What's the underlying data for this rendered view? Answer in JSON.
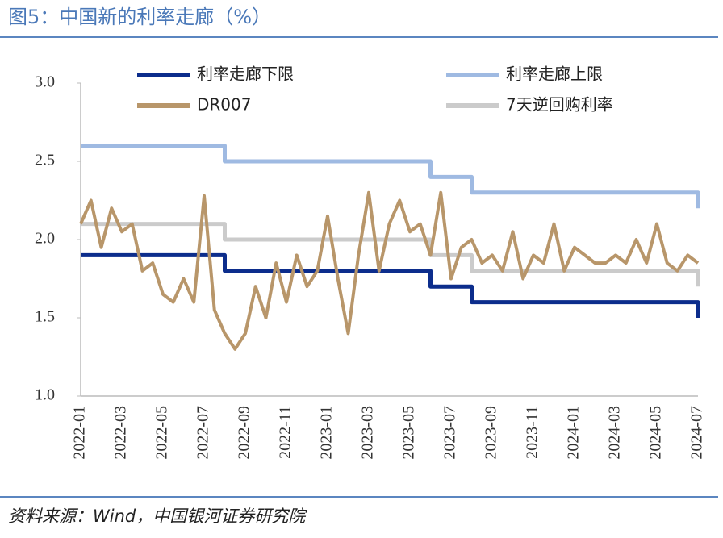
{
  "chart_data": {
    "type": "line",
    "step": true,
    "title": "图5：中国新的利率走廊（%）",
    "source": "资料来源：Wind，中国银河证券研究院",
    "legend": "top",
    "categories": [
      "2022-01",
      null,
      null,
      null,
      "2022-03",
      null,
      null,
      null,
      "2022-05",
      null,
      null,
      null,
      "2022-07",
      null,
      null,
      null,
      "2022-09",
      null,
      null,
      null,
      "2022-11",
      null,
      null,
      null,
      "2023-01",
      null,
      null,
      null,
      "2023-03",
      null,
      null,
      null,
      "2023-05",
      null,
      null,
      null,
      "2023-07",
      null,
      null,
      null,
      "2023-09",
      null,
      null,
      null,
      "2023-11",
      null,
      null,
      null,
      "2024-01",
      null,
      null,
      null,
      "2024-03",
      null,
      null,
      null,
      "2024-05",
      null,
      null,
      null,
      "2024-07"
    ],
    "ylim": [
      1.0,
      3.0
    ],
    "yticks": [
      {
        "value": 1.0,
        "label": "1.0"
      },
      {
        "value": 1.5,
        "label": "1.5"
      },
      {
        "value": 2.0,
        "label": "2.0"
      },
      {
        "value": 2.5,
        "label": "2.5"
      },
      {
        "value": 3.0,
        "label": "3.0"
      }
    ],
    "series": [
      {
        "name": "利率走廊下限",
        "color": "#0c2d8c",
        "step": true,
        "values": [
          1.9,
          1.9,
          1.9,
          1.9,
          1.9,
          1.9,
          1.9,
          1.9,
          1.9,
          1.9,
          1.9,
          1.9,
          1.9,
          1.9,
          1.8,
          1.8,
          1.8,
          1.8,
          1.8,
          1.8,
          1.8,
          1.8,
          1.8,
          1.8,
          1.8,
          1.8,
          1.8,
          1.8,
          1.8,
          1.8,
          1.8,
          1.8,
          1.8,
          1.8,
          1.7,
          1.7,
          1.7,
          1.7,
          1.6,
          1.6,
          1.6,
          1.6,
          1.6,
          1.6,
          1.6,
          1.6,
          1.6,
          1.6,
          1.6,
          1.6,
          1.6,
          1.6,
          1.6,
          1.6,
          1.6,
          1.6,
          1.6,
          1.6,
          1.6,
          1.6,
          1.5
        ]
      },
      {
        "name": "利率走廊上限",
        "color": "#9fbae2",
        "step": true,
        "values": [
          2.6,
          2.6,
          2.6,
          2.6,
          2.6,
          2.6,
          2.6,
          2.6,
          2.6,
          2.6,
          2.6,
          2.6,
          2.6,
          2.6,
          2.5,
          2.5,
          2.5,
          2.5,
          2.5,
          2.5,
          2.5,
          2.5,
          2.5,
          2.5,
          2.5,
          2.5,
          2.5,
          2.5,
          2.5,
          2.5,
          2.5,
          2.5,
          2.5,
          2.5,
          2.4,
          2.4,
          2.4,
          2.4,
          2.3,
          2.3,
          2.3,
          2.3,
          2.3,
          2.3,
          2.3,
          2.3,
          2.3,
          2.3,
          2.3,
          2.3,
          2.3,
          2.3,
          2.3,
          2.3,
          2.3,
          2.3,
          2.3,
          2.3,
          2.3,
          2.3,
          2.2
        ]
      },
      {
        "name": "DR007",
        "color": "#b8966a",
        "step": false,
        "values": [
          2.1,
          2.25,
          1.95,
          2.2,
          2.05,
          2.1,
          1.8,
          1.85,
          1.65,
          1.6,
          1.75,
          1.6,
          2.28,
          1.55,
          1.4,
          1.3,
          1.4,
          1.7,
          1.5,
          1.85,
          1.6,
          1.9,
          1.7,
          1.8,
          2.15,
          1.75,
          1.4,
          1.9,
          2.3,
          1.8,
          2.1,
          2.25,
          2.05,
          2.1,
          1.9,
          2.3,
          1.75,
          1.95,
          2.0,
          1.85,
          1.9,
          1.8,
          2.05,
          1.75,
          1.9,
          1.85,
          2.1,
          1.8,
          1.95,
          1.9,
          1.85,
          1.85,
          1.9,
          1.85,
          2.0,
          1.85,
          2.1,
          1.85,
          1.8,
          1.9,
          1.85
        ]
      },
      {
        "name": "7天逆回购利率",
        "color": "#cbcbcb",
        "step": true,
        "values": [
          2.1,
          2.1,
          2.1,
          2.1,
          2.1,
          2.1,
          2.1,
          2.1,
          2.1,
          2.1,
          2.1,
          2.1,
          2.1,
          2.1,
          2.0,
          2.0,
          2.0,
          2.0,
          2.0,
          2.0,
          2.0,
          2.0,
          2.0,
          2.0,
          2.0,
          2.0,
          2.0,
          2.0,
          2.0,
          2.0,
          2.0,
          2.0,
          2.0,
          2.0,
          1.9,
          1.9,
          1.9,
          1.9,
          1.8,
          1.8,
          1.8,
          1.8,
          1.8,
          1.8,
          1.8,
          1.8,
          1.8,
          1.8,
          1.8,
          1.8,
          1.8,
          1.8,
          1.8,
          1.8,
          1.8,
          1.8,
          1.8,
          1.8,
          1.8,
          1.8,
          1.7
        ]
      }
    ]
  }
}
